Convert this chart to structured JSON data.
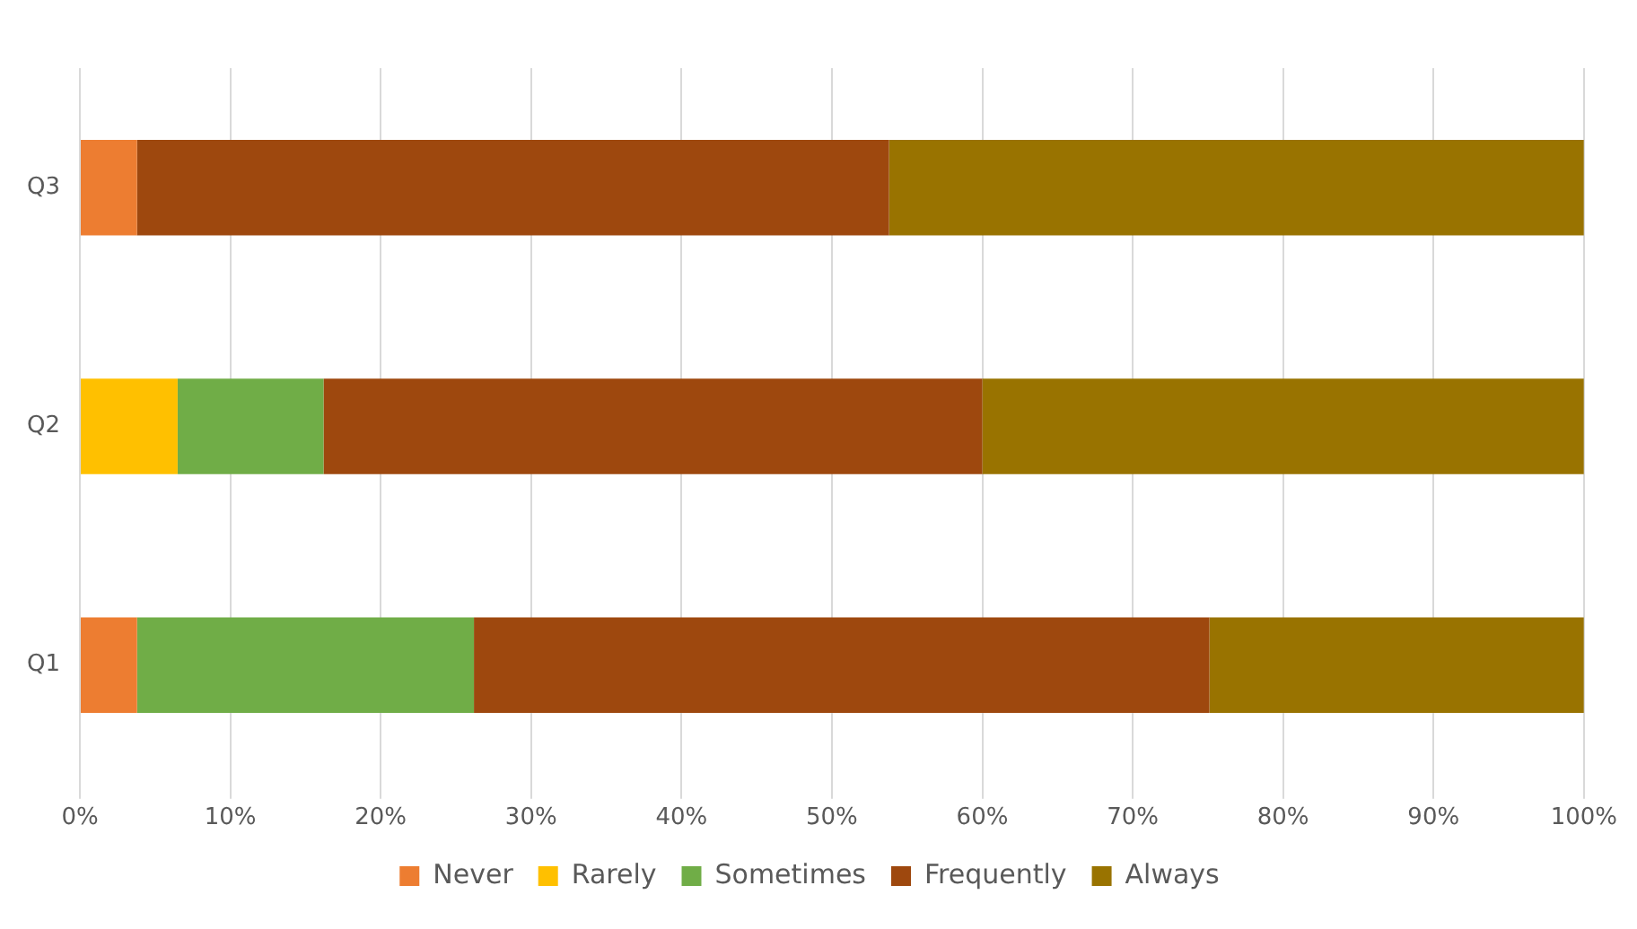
{
  "chart_data": {
    "type": "bar",
    "orientation": "horizontal",
    "stacked": true,
    "categories": [
      "Q3",
      "Q2",
      "Q1"
    ],
    "series": [
      {
        "name": "Never",
        "color": "#ed7d31",
        "values": [
          3.8,
          0,
          3.8
        ]
      },
      {
        "name": "Rarely",
        "color": "#ffc000",
        "values": [
          0,
          6.5,
          0
        ]
      },
      {
        "name": "Sometimes",
        "color": "#70ad47",
        "values": [
          0,
          9.7,
          22.4
        ]
      },
      {
        "name": "Frequently",
        "color": "#9e480e",
        "values": [
          50,
          43.8,
          48.9
        ]
      },
      {
        "name": "Always",
        "color": "#997300",
        "values": [
          46.2,
          40,
          24.9
        ]
      }
    ],
    "xlim": [
      0,
      100
    ],
    "xticks": [
      {
        "value": 0,
        "label": "0%"
      },
      {
        "value": 10,
        "label": "10%"
      },
      {
        "value": 20,
        "label": "20%"
      },
      {
        "value": 30,
        "label": "30%"
      },
      {
        "value": 40,
        "label": "40%"
      },
      {
        "value": 50,
        "label": "50%"
      },
      {
        "value": 60,
        "label": "60%"
      },
      {
        "value": 70,
        "label": "70%"
      },
      {
        "value": 80,
        "label": "80%"
      },
      {
        "value": 90,
        "label": "90%"
      },
      {
        "value": 100,
        "label": "100%"
      }
    ],
    "grid": "x",
    "legend": "bottom"
  }
}
